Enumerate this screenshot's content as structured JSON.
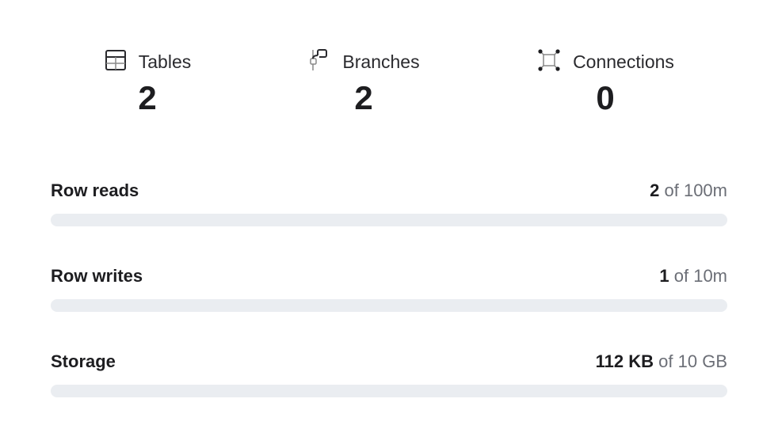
{
  "stats": [
    {
      "label": "Tables",
      "value": "2",
      "icon": "table-icon"
    },
    {
      "label": "Branches",
      "value": "2",
      "icon": "branch-icon"
    },
    {
      "label": "Connections",
      "value": "0",
      "icon": "connections-icon"
    }
  ],
  "meters": [
    {
      "name": "Row reads",
      "used": "2",
      "of_text": "of",
      "limit": "100m",
      "fraction": 2e-08
    },
    {
      "name": "Row writes",
      "used": "1",
      "of_text": "of",
      "limit": "10m",
      "fraction": 1e-07
    },
    {
      "name": "Storage",
      "used": "112 KB",
      "of_text": "of",
      "limit": "10 GB",
      "fraction": 1.12e-05
    }
  ],
  "colors": {
    "track": "#eaedf1",
    "text": "#1d1d20",
    "muted": "#6b6e76"
  }
}
